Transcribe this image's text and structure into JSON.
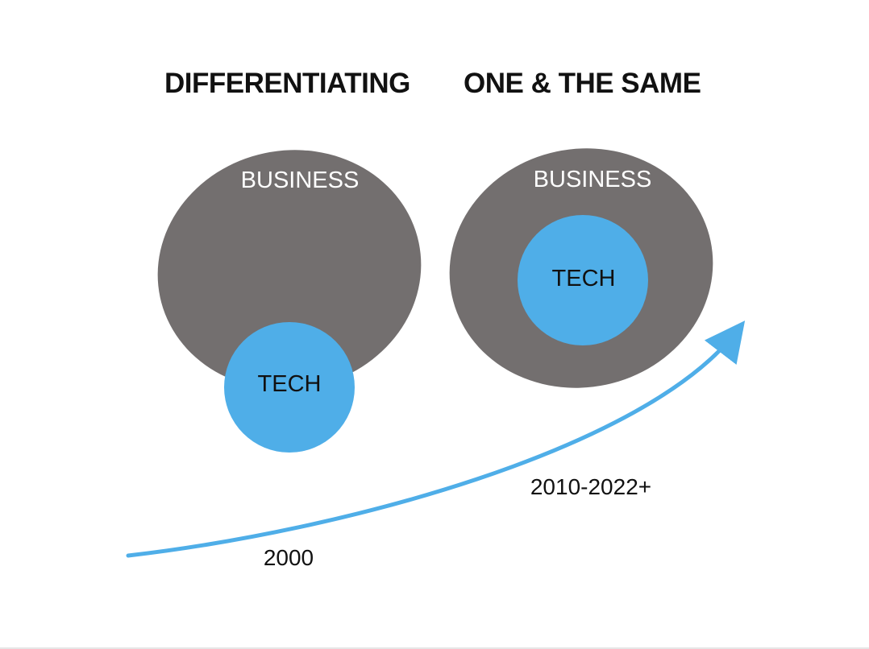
{
  "titles": {
    "left": "DIFFERENTIATING",
    "right": "ONE & THE SAME"
  },
  "left_diagram": {
    "outer_label": "BUSINESS",
    "inner_label": "TECH"
  },
  "right_diagram": {
    "outer_label": "BUSINESS",
    "inner_label": "TECH"
  },
  "timeline": {
    "start_label": "2000",
    "end_label": "2010-2022+"
  },
  "colors": {
    "business": "#736f6f",
    "tech": "#4faee8",
    "arrow": "#4faee8",
    "text": "#111111"
  }
}
